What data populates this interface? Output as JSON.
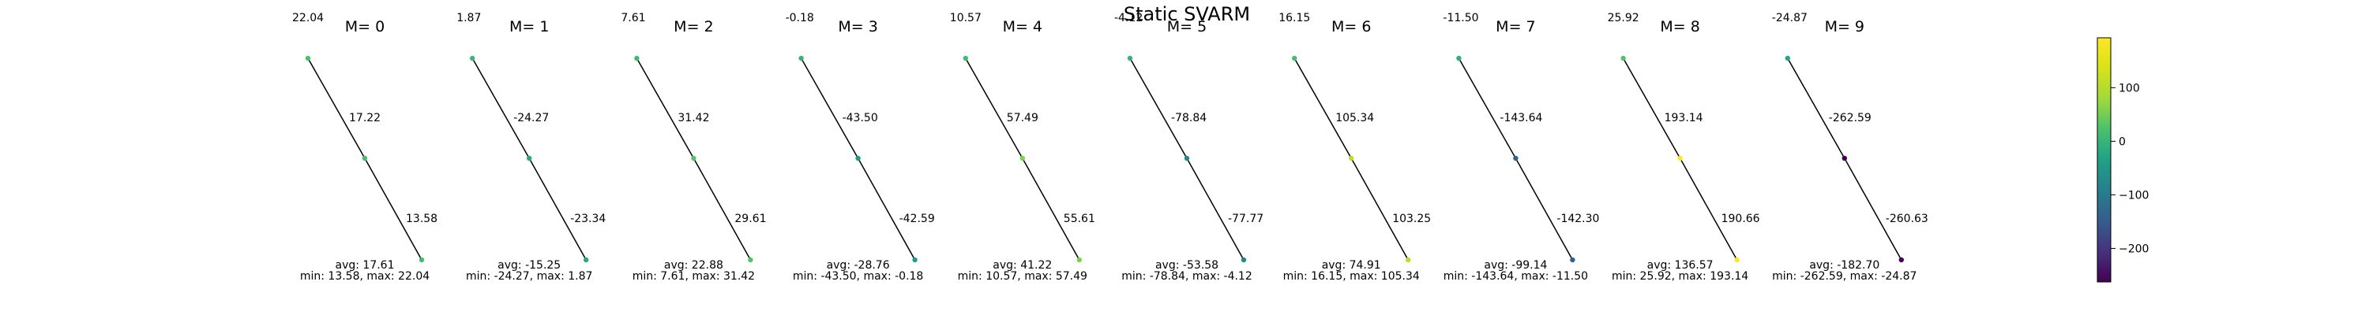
{
  "title": "Static SVARM",
  "colorbar": {
    "colormap": "viridis",
    "min": -262.59,
    "max": 193.14,
    "ticks": [
      100,
      0,
      -100,
      -200
    ],
    "tick_labels": [
      "100",
      "0",
      "−100",
      "−200"
    ]
  },
  "chart_data": [
    {
      "type": "line",
      "title": "M= 0",
      "values": [
        22.04,
        17.22,
        13.58
      ],
      "avg_label": "avg: 17.61",
      "range_label": "min: 13.58, max: 22.04"
    },
    {
      "type": "line",
      "title": "M= 1",
      "values": [
        1.87,
        -24.27,
        -23.34
      ],
      "avg_label": "avg: -15.25",
      "range_label": "min: -24.27, max: 1.87"
    },
    {
      "type": "line",
      "title": "M= 2",
      "values": [
        7.61,
        31.42,
        29.61
      ],
      "avg_label": "avg: 22.88",
      "range_label": "min: 7.61, max: 31.42"
    },
    {
      "type": "line",
      "title": "M= 3",
      "values": [
        -0.18,
        -43.5,
        -42.59
      ],
      "avg_label": "avg: -28.76",
      "range_label": "min: -43.50, max: -0.18"
    },
    {
      "type": "line",
      "title": "M= 4",
      "values": [
        10.57,
        57.49,
        55.61
      ],
      "avg_label": "avg: 41.22",
      "range_label": "min: 10.57, max: 57.49"
    },
    {
      "type": "line",
      "title": "M= 5",
      "values": [
        -4.12,
        -78.84,
        -77.77
      ],
      "avg_label": "avg: -53.58",
      "range_label": "min: -78.84, max: -4.12"
    },
    {
      "type": "line",
      "title": "M= 6",
      "values": [
        16.15,
        105.34,
        103.25
      ],
      "avg_label": "avg: 74.91",
      "range_label": "min: 16.15, max: 105.34"
    },
    {
      "type": "line",
      "title": "M= 7",
      "values": [
        -11.5,
        -143.64,
        -142.3
      ],
      "avg_label": "avg: -99.14",
      "range_label": "min: -143.64, max: -11.50"
    },
    {
      "type": "line",
      "title": "M= 8",
      "values": [
        25.92,
        193.14,
        190.66
      ],
      "avg_label": "avg: 136.57",
      "range_label": "min: 25.92, max: 193.14"
    },
    {
      "type": "line",
      "title": "M= 9",
      "values": [
        -24.87,
        -262.59,
        -260.63
      ],
      "avg_label": "avg: -182.70",
      "range_label": "min: -262.59, max: -24.87"
    }
  ]
}
